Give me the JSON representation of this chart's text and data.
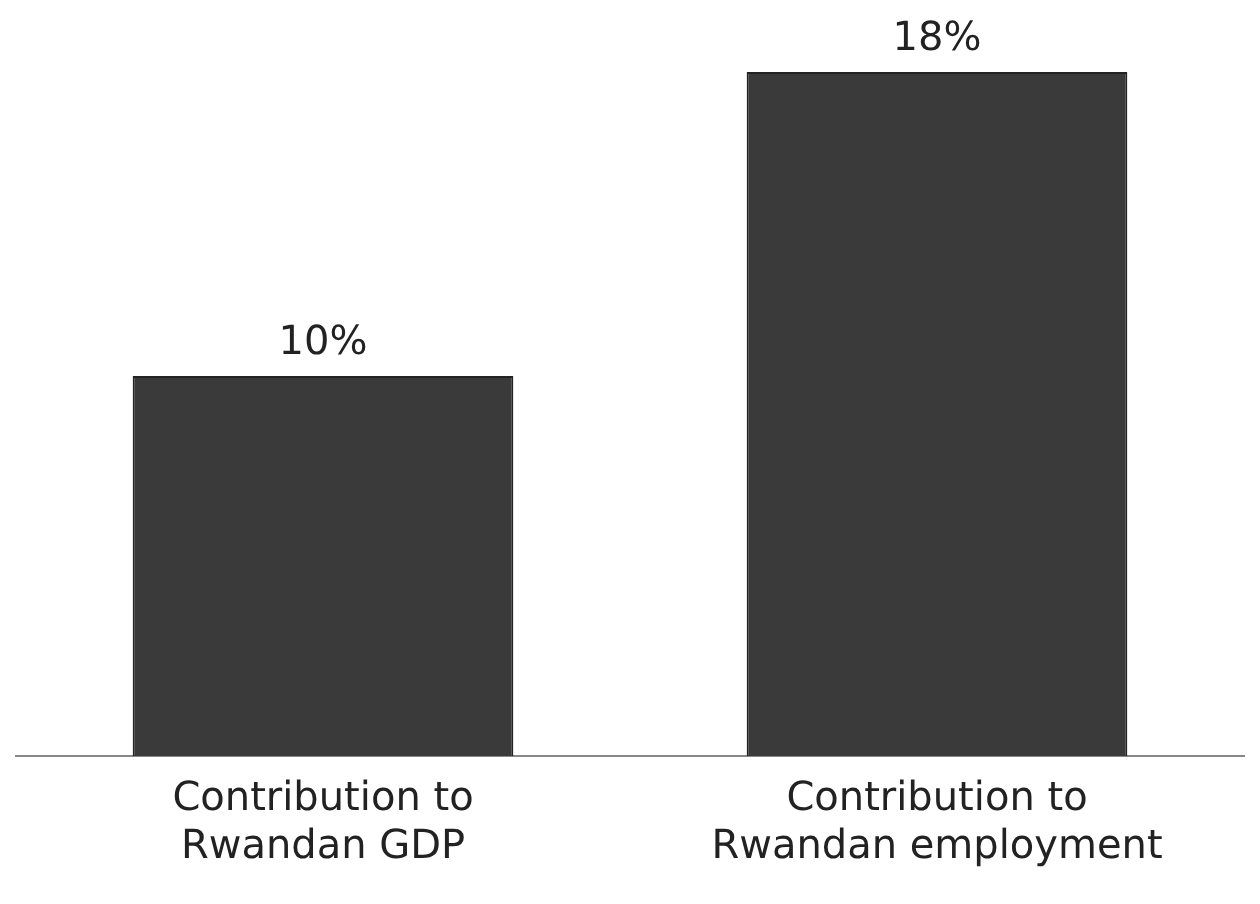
{
  "chart_data": {
    "type": "bar",
    "tick_labels": "x",
    "categories": [
      "Contribution to Rwandan GDP",
      "Contribution to Rwandan employment"
    ],
    "values": [
      10,
      18
    ],
    "value_labels": [
      "10%",
      "18%"
    ],
    "color": "#3a3a3a",
    "grid": false,
    "legend": false
  }
}
